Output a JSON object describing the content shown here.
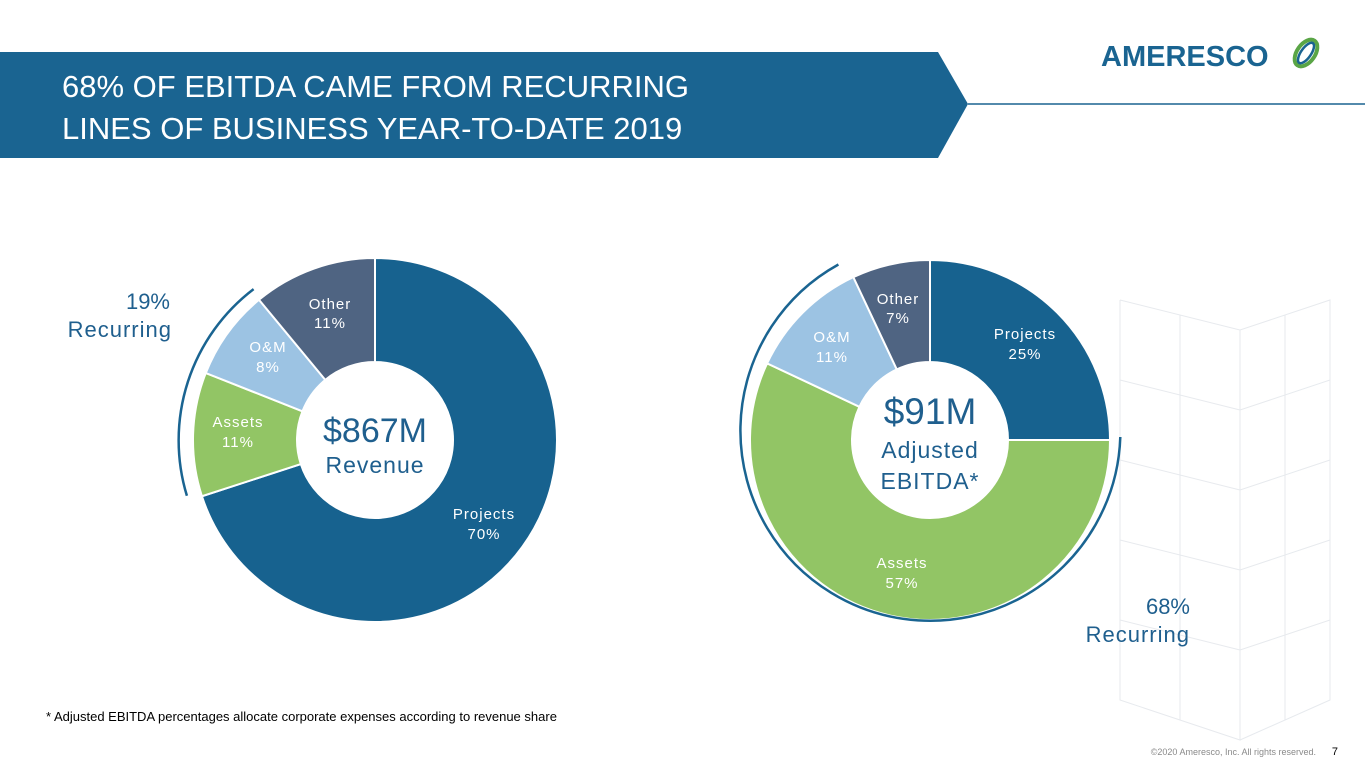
{
  "header": {
    "title_line1": "68% OF EBITDA CAME FROM RECURRING",
    "title_line2": "LINES OF BUSINESS YEAR-TO-DATE 2019",
    "logo_text": "AMERESCO"
  },
  "colors": {
    "banner": "#1a6491",
    "projects": "#17628f",
    "assets": "#92c565",
    "om": "#9cc3e3",
    "other": "#4f6482",
    "accent_text": "#1f5f8e"
  },
  "chart_data": [
    {
      "type": "pie",
      "variant": "donut",
      "center_value": "$867M",
      "center_label": "Revenue",
      "categories": [
        "Projects",
        "Assets",
        "O&M",
        "Other"
      ],
      "values": [
        70,
        11,
        8,
        11
      ],
      "value_labels": [
        "70%",
        "11%",
        "8%",
        "11%"
      ],
      "recurring_value": "19%",
      "recurring_label": "Recurring"
    },
    {
      "type": "pie",
      "variant": "donut",
      "center_value": "$91M",
      "center_label_line1": "Adjusted",
      "center_label_line2": "EBITDA*",
      "categories": [
        "Projects",
        "Assets",
        "O&M",
        "Other"
      ],
      "values": [
        25,
        57,
        11,
        7
      ],
      "value_labels": [
        "25%",
        "57%",
        "11%",
        "7%"
      ],
      "recurring_value": "68%",
      "recurring_label": "Recurring"
    }
  ],
  "footnote": "* Adjusted EBITDA percentages allocate corporate expenses according to revenue share",
  "footer": {
    "copyright": "©2020 Ameresco, Inc. All rights reserved.",
    "page_number": "7"
  }
}
